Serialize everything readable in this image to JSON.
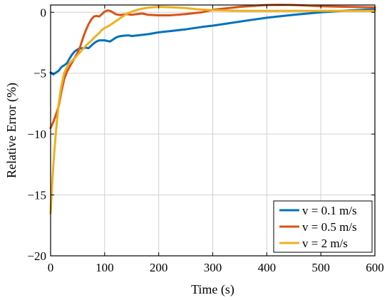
{
  "chart_data": {
    "type": "line",
    "title": "",
    "xlabel": "Time (s)",
    "ylabel": "Relative Error (%)",
    "xlim": [
      0,
      600
    ],
    "ylim": [
      -20,
      0.6
    ],
    "xticks": [
      0,
      100,
      200,
      300,
      400,
      500,
      600
    ],
    "yticks": [
      -20,
      -15,
      -10,
      -5,
      0
    ],
    "grid": true,
    "legend_position": "bottom-right",
    "series": [
      {
        "name": "v = 0.1 m/s",
        "color": "#0072BD",
        "x": [
          0,
          5,
          10,
          15,
          20,
          25,
          30,
          35,
          40,
          45,
          50,
          55,
          60,
          65,
          70,
          75,
          80,
          85,
          90,
          95,
          100,
          105,
          110,
          115,
          120,
          125,
          130,
          135,
          140,
          145,
          150,
          160,
          180,
          200,
          220,
          250,
          280,
          300,
          330,
          360,
          400,
          450,
          500,
          550,
          600
        ],
        "y": [
          -4.95,
          -5.1,
          -4.95,
          -4.8,
          -4.5,
          -4.35,
          -4.2,
          -3.8,
          -3.45,
          -3.2,
          -3.05,
          -2.95,
          -2.95,
          -2.9,
          -2.95,
          -2.75,
          -2.55,
          -2.4,
          -2.3,
          -2.3,
          -2.3,
          -2.35,
          -2.4,
          -2.25,
          -2.1,
          -2.0,
          -1.95,
          -1.92,
          -1.9,
          -1.9,
          -1.95,
          -1.9,
          -1.8,
          -1.65,
          -1.55,
          -1.4,
          -1.2,
          -1.1,
          -0.9,
          -0.7,
          -0.45,
          -0.2,
          0.0,
          0.15,
          0.25
        ]
      },
      {
        "name": "v = 0.5 m/s",
        "color": "#D95319",
        "x": [
          0,
          5,
          10,
          15,
          20,
          25,
          30,
          35,
          40,
          45,
          50,
          55,
          60,
          65,
          70,
          75,
          80,
          85,
          90,
          95,
          100,
          105,
          110,
          115,
          120,
          125,
          130,
          140,
          150,
          160,
          170,
          180,
          200,
          220,
          250,
          280,
          300,
          350,
          400,
          430,
          450,
          500,
          550,
          600
        ],
        "y": [
          -9.5,
          -9.0,
          -8.4,
          -7.7,
          -6.5,
          -5.5,
          -4.9,
          -4.5,
          -4.1,
          -3.7,
          -3.3,
          -2.8,
          -2.1,
          -1.5,
          -1.0,
          -0.6,
          -0.35,
          -0.3,
          -0.35,
          -0.15,
          0.05,
          0.15,
          0.12,
          0.0,
          -0.15,
          -0.2,
          -0.22,
          -0.15,
          -0.2,
          -0.15,
          -0.1,
          -0.2,
          -0.25,
          -0.25,
          -0.15,
          0.0,
          0.2,
          0.45,
          0.6,
          0.62,
          0.6,
          0.5,
          0.45,
          0.4
        ]
      },
      {
        "name": "v = 2 m/s",
        "color": "#EDB120",
        "x": [
          0,
          3,
          6,
          9,
          12,
          15,
          20,
          25,
          30,
          35,
          40,
          45,
          50,
          55,
          60,
          65,
          70,
          75,
          80,
          85,
          90,
          95,
          100,
          110,
          120,
          130,
          140,
          150,
          160,
          170,
          180,
          200,
          220,
          250,
          270,
          300,
          350,
          400,
          450,
          500,
          550,
          600
        ],
        "y": [
          -16.5,
          -14.0,
          -12.0,
          -10.3,
          -8.8,
          -7.5,
          -6.0,
          -5.0,
          -4.5,
          -4.2,
          -3.95,
          -3.75,
          -3.5,
          -3.25,
          -3.0,
          -2.75,
          -2.55,
          -2.35,
          -2.1,
          -1.9,
          -1.7,
          -1.45,
          -1.3,
          -1.05,
          -0.75,
          -0.45,
          -0.15,
          0.05,
          0.2,
          0.3,
          0.38,
          0.45,
          0.42,
          0.35,
          0.25,
          0.18,
          0.12,
          0.12,
          0.12,
          0.12,
          0.12,
          0.12
        ]
      }
    ]
  }
}
